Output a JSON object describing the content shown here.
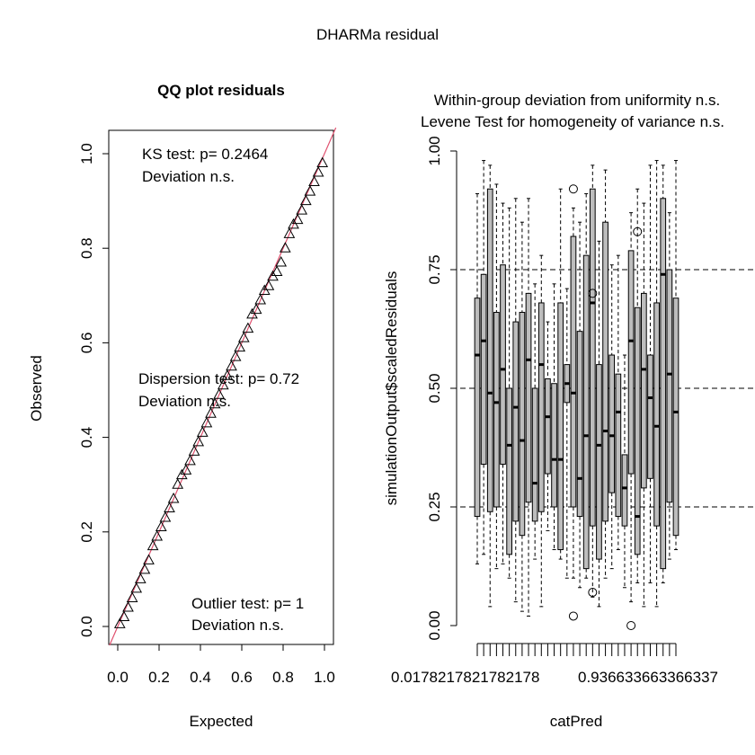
{
  "figure": {
    "title": "DHARMa residual"
  },
  "chart_data": [
    {
      "type": "scatter",
      "title": "QQ plot residuals",
      "xlabel": "Expected",
      "ylabel": "Observed",
      "xlim": [
        0,
        1
      ],
      "ylim": [
        0,
        1
      ],
      "x_ticks": [
        "0.0",
        "0.2",
        "0.4",
        "0.6",
        "0.8",
        "1.0"
      ],
      "y_ticks": [
        "0.0",
        "0.2",
        "0.4",
        "0.6",
        "0.8",
        "1.0"
      ],
      "marker": "triangle",
      "reference_line": {
        "slope": 1,
        "intercept": 0,
        "color": "#e0506e"
      },
      "annotations": [
        {
          "line1": "KS test: p= 0.2464",
          "line2": "Deviation  n.s."
        },
        {
          "line1": "Dispersion test: p= 0.72",
          "line2": "Deviation  n.s."
        },
        {
          "line1": "Outlier test: p= 1",
          "line2": "Deviation  n.s."
        }
      ],
      "x": [
        0.01,
        0.03,
        0.05,
        0.07,
        0.09,
        0.11,
        0.13,
        0.15,
        0.17,
        0.19,
        0.21,
        0.23,
        0.25,
        0.27,
        0.29,
        0.31,
        0.33,
        0.35,
        0.37,
        0.39,
        0.41,
        0.43,
        0.45,
        0.47,
        0.49,
        0.51,
        0.53,
        0.55,
        0.57,
        0.59,
        0.61,
        0.63,
        0.65,
        0.67,
        0.69,
        0.71,
        0.73,
        0.75,
        0.77,
        0.79,
        0.81,
        0.83,
        0.85,
        0.87,
        0.89,
        0.91,
        0.93,
        0.95,
        0.97,
        0.99
      ],
      "y": [
        0.005,
        0.02,
        0.04,
        0.06,
        0.08,
        0.1,
        0.12,
        0.14,
        0.17,
        0.19,
        0.21,
        0.23,
        0.25,
        0.27,
        0.3,
        0.32,
        0.33,
        0.35,
        0.37,
        0.39,
        0.41,
        0.43,
        0.45,
        0.47,
        0.49,
        0.51,
        0.53,
        0.55,
        0.57,
        0.59,
        0.61,
        0.63,
        0.66,
        0.67,
        0.69,
        0.71,
        0.72,
        0.74,
        0.75,
        0.77,
        0.8,
        0.83,
        0.85,
        0.86,
        0.88,
        0.9,
        0.92,
        0.94,
        0.96,
        0.98
      ]
    },
    {
      "type": "box",
      "subtitle_line1": "Within-group deviation from uniformity n.s.",
      "subtitle_line2": "Levene Test for homogeneity of variance n.s.",
      "xlabel": "catPred",
      "ylabel": "simulationOutput$scaledResiduals",
      "ylim": [
        0,
        1
      ],
      "y_ticks": [
        "0.00",
        "0.25",
        "0.50",
        "0.75",
        "1.00"
      ],
      "x_tick_labels": [
        "0.0178217821782178",
        "0.936633663366337"
      ],
      "reference_lines": [
        0.25,
        0.5,
        0.75
      ],
      "groups": [
        {
          "lo": 0.13,
          "q1": 0.23,
          "med": 0.57,
          "q3": 0.69,
          "hi": 0.91
        },
        {
          "lo": 0.15,
          "q1": 0.34,
          "med": 0.6,
          "q3": 0.74,
          "hi": 0.98
        },
        {
          "lo": 0.04,
          "q1": 0.24,
          "med": 0.49,
          "q3": 0.92,
          "hi": 0.97
        },
        {
          "lo": 0.12,
          "q1": 0.25,
          "med": 0.47,
          "q3": 0.66,
          "hi": 0.93
        },
        {
          "lo": 0.13,
          "q1": 0.34,
          "med": 0.54,
          "q3": 0.76,
          "hi": 0.89
        },
        {
          "lo": 0.1,
          "q1": 0.15,
          "med": 0.38,
          "q3": 0.5,
          "hi": 0.88
        },
        {
          "lo": 0.05,
          "q1": 0.22,
          "med": 0.46,
          "q3": 0.64,
          "hi": 0.9
        },
        {
          "lo": 0.03,
          "q1": 0.19,
          "med": 0.39,
          "q3": 0.66,
          "hi": 0.85
        },
        {
          "lo": 0.02,
          "q1": 0.26,
          "med": 0.56,
          "q3": 0.7,
          "hi": 0.9
        },
        {
          "lo": 0.14,
          "q1": 0.22,
          "med": 0.3,
          "q3": 0.5,
          "hi": 0.72
        },
        {
          "lo": 0.04,
          "q1": 0.24,
          "med": 0.55,
          "q3": 0.68,
          "hi": 0.78
        },
        {
          "lo": 0.2,
          "q1": 0.32,
          "med": 0.44,
          "q3": 0.52,
          "hi": 0.64
        },
        {
          "lo": 0.16,
          "q1": 0.25,
          "med": 0.35,
          "q3": 0.51,
          "hi": 0.72
        },
        {
          "lo": 0.14,
          "q1": 0.16,
          "med": 0.35,
          "q3": 0.68,
          "hi": 0.92
        },
        {
          "lo": 0.1,
          "q1": 0.47,
          "med": 0.51,
          "q3": 0.55,
          "hi": 0.71
        },
        {
          "lo": 0.1,
          "q1": 0.25,
          "med": 0.49,
          "q3": 0.82,
          "hi": 0.88
        },
        {
          "lo": 0.08,
          "q1": 0.23,
          "med": 0.31,
          "q3": 0.62,
          "hi": 0.85
        },
        {
          "lo": 0.1,
          "q1": 0.12,
          "med": 0.4,
          "q3": 0.78,
          "hi": 0.91
        },
        {
          "lo": 0.06,
          "q1": 0.21,
          "med": 0.68,
          "q3": 0.92,
          "hi": 0.97
        },
        {
          "lo": 0.04,
          "q1": 0.14,
          "med": 0.38,
          "q3": 0.55,
          "hi": 0.81
        },
        {
          "lo": 0.1,
          "q1": 0.22,
          "med": 0.41,
          "q3": 0.85,
          "hi": 0.96
        },
        {
          "lo": 0.12,
          "q1": 0.28,
          "med": 0.4,
          "q3": 0.57,
          "hi": 0.76
        },
        {
          "lo": 0.16,
          "q1": 0.23,
          "med": 0.45,
          "q3": 0.53,
          "hi": 0.78
        },
        {
          "lo": 0.08,
          "q1": 0.21,
          "med": 0.29,
          "q3": 0.36,
          "hi": 0.57
        },
        {
          "lo": 0.05,
          "q1": 0.32,
          "med": 0.6,
          "q3": 0.79,
          "hi": 0.87
        },
        {
          "lo": 0.09,
          "q1": 0.15,
          "med": 0.23,
          "q3": 0.67,
          "hi": 0.92
        },
        {
          "lo": 0.04,
          "q1": 0.29,
          "med": 0.54,
          "q3": 0.7,
          "hi": 0.89
        },
        {
          "lo": 0.09,
          "q1": 0.31,
          "med": 0.48,
          "q3": 0.57,
          "hi": 0.97
        },
        {
          "lo": 0.04,
          "q1": 0.21,
          "med": 0.42,
          "q3": 0.68,
          "hi": 0.98
        },
        {
          "lo": 0.09,
          "q1": 0.12,
          "med": 0.74,
          "q3": 0.9,
          "hi": 0.97
        },
        {
          "lo": 0.14,
          "q1": 0.26,
          "med": 0.53,
          "q3": 0.75,
          "hi": 0.87
        },
        {
          "lo": 0.16,
          "q1": 0.19,
          "med": 0.45,
          "q3": 0.69,
          "hi": 0.98
        }
      ],
      "outliers": [
        {
          "group": 15,
          "y": 0.92
        },
        {
          "group": 15,
          "y": 0.02
        },
        {
          "group": 18,
          "y": 0.7
        },
        {
          "group": 18,
          "y": 0.07
        },
        {
          "group": 25,
          "y": 0.83
        },
        {
          "group": 24,
          "y": 0.0
        }
      ]
    }
  ]
}
